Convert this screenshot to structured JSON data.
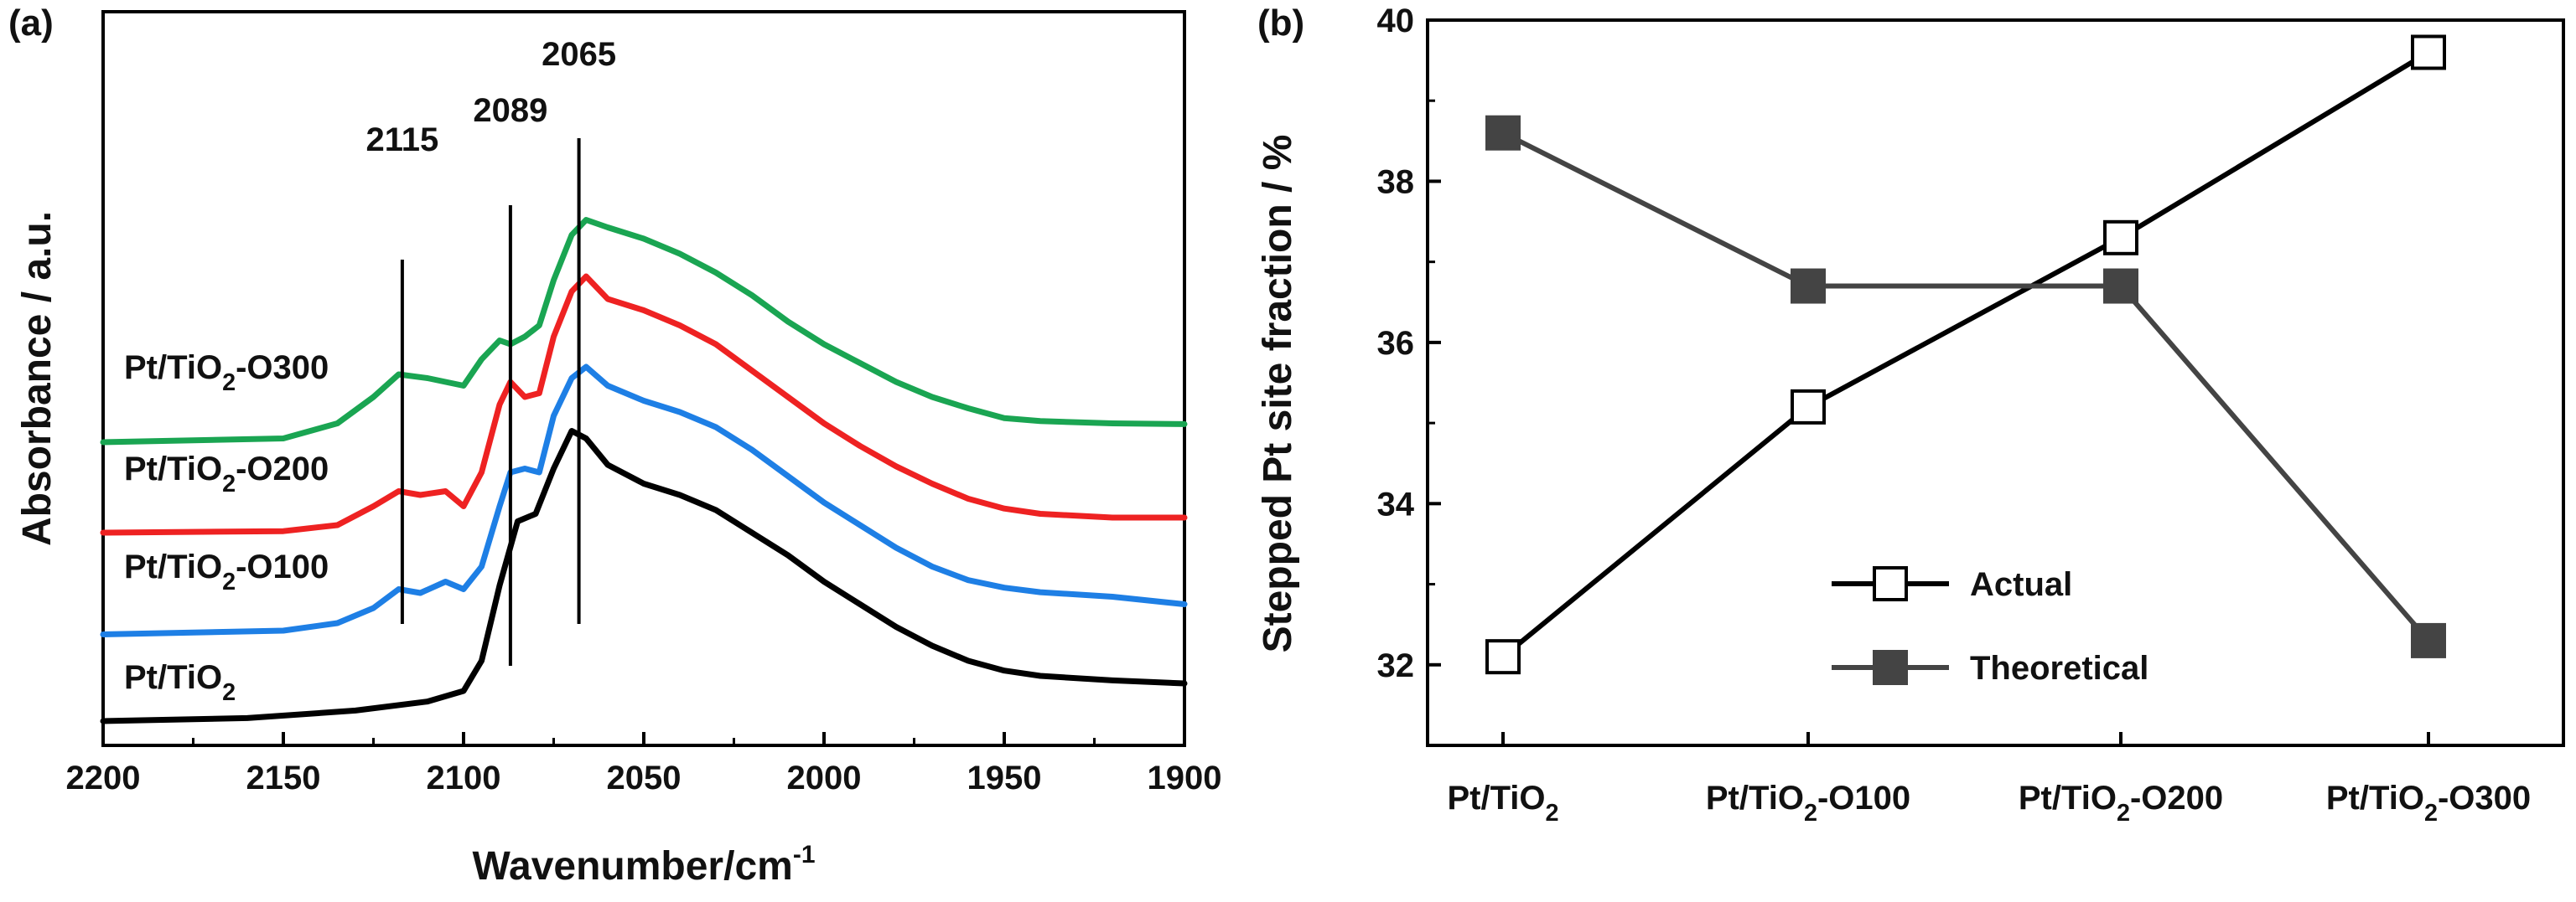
{
  "panel_labels": {
    "a": "(a)",
    "b": "(b)"
  },
  "colors": {
    "axis": "#000000",
    "actual": "#000000",
    "theoretical": "#444444",
    "vline": "#000000"
  },
  "chart_data": [
    {
      "id": "a",
      "type": "line",
      "xlabel_main": "Wavenumber/cm",
      "xlabel_sup": "-1",
      "ylabel": "Absorbance / a.u.",
      "xlim": [
        2200,
        1900
      ],
      "x_ticks": [
        2200,
        2150,
        2100,
        2050,
        2000,
        1950,
        1900
      ],
      "yticks_shown": false,
      "y_range_offset_units": [
        0,
        8.4
      ],
      "peak_lines": [
        {
          "label": "2115",
          "x": 2117
        },
        {
          "label": "2089",
          "x": 2087
        },
        {
          "label": "2065",
          "x": 2068
        }
      ],
      "series": [
        {
          "name": "Pt/TiO2",
          "label_parts": [
            "Pt/TiO",
            "2",
            ""
          ],
          "color": "#000000",
          "offset": 0,
          "points": [
            [
              2200,
              0.1
            ],
            [
              2160,
              0.14
            ],
            [
              2130,
              0.24
            ],
            [
              2110,
              0.36
            ],
            [
              2100,
              0.5
            ],
            [
              2095,
              0.9
            ],
            [
              2090,
              1.9
            ],
            [
              2085,
              2.75
            ],
            [
              2080,
              2.85
            ],
            [
              2075,
              3.45
            ],
            [
              2070,
              3.95
            ],
            [
              2066,
              3.85
            ],
            [
              2060,
              3.5
            ],
            [
              2050,
              3.25
            ],
            [
              2040,
              3.1
            ],
            [
              2030,
              2.9
            ],
            [
              2020,
              2.6
            ],
            [
              2010,
              2.3
            ],
            [
              2000,
              1.95
            ],
            [
              1990,
              1.65
            ],
            [
              1980,
              1.35
            ],
            [
              1970,
              1.1
            ],
            [
              1960,
              0.9
            ],
            [
              1950,
              0.77
            ],
            [
              1940,
              0.7
            ],
            [
              1920,
              0.64
            ],
            [
              1900,
              0.6
            ]
          ]
        },
        {
          "name": "Pt/TiO2-O100",
          "label_parts": [
            "Pt/TiO",
            "2",
            "-O100"
          ],
          "color": "#1e7fe5",
          "offset": 1.25,
          "points": [
            [
              2200,
              0
            ],
            [
              2150,
              0.05
            ],
            [
              2135,
              0.15
            ],
            [
              2125,
              0.35
            ],
            [
              2118,
              0.6
            ],
            [
              2112,
              0.55
            ],
            [
              2105,
              0.7
            ],
            [
              2100,
              0.6
            ],
            [
              2095,
              0.9
            ],
            [
              2090,
              1.7
            ],
            [
              2087,
              2.15
            ],
            [
              2083,
              2.2
            ],
            [
              2079,
              2.15
            ],
            [
              2075,
              2.9
            ],
            [
              2070,
              3.4
            ],
            [
              2066,
              3.55
            ],
            [
              2060,
              3.3
            ],
            [
              2050,
              3.1
            ],
            [
              2040,
              2.95
            ],
            [
              2030,
              2.75
            ],
            [
              2020,
              2.45
            ],
            [
              2010,
              2.1
            ],
            [
              2000,
              1.75
            ],
            [
              1990,
              1.45
            ],
            [
              1980,
              1.15
            ],
            [
              1970,
              0.9
            ],
            [
              1960,
              0.72
            ],
            [
              1950,
              0.62
            ],
            [
              1940,
              0.56
            ],
            [
              1920,
              0.5
            ],
            [
              1900,
              0.4
            ]
          ]
        },
        {
          "name": "Pt/TiO2-O200",
          "label_parts": [
            "Pt/TiO",
            "2",
            "-O200"
          ],
          "color": "#ee2222",
          "offset": 2.6,
          "points": [
            [
              2200,
              0
            ],
            [
              2150,
              0.02
            ],
            [
              2135,
              0.1
            ],
            [
              2125,
              0.35
            ],
            [
              2118,
              0.55
            ],
            [
              2112,
              0.5
            ],
            [
              2105,
              0.55
            ],
            [
              2100,
              0.35
            ],
            [
              2095,
              0.8
            ],
            [
              2090,
              1.7
            ],
            [
              2087,
              2.0
            ],
            [
              2083,
              1.8
            ],
            [
              2079,
              1.85
            ],
            [
              2075,
              2.6
            ],
            [
              2070,
              3.2
            ],
            [
              2066,
              3.4
            ],
            [
              2060,
              3.1
            ],
            [
              2050,
              2.95
            ],
            [
              2040,
              2.75
            ],
            [
              2030,
              2.5
            ],
            [
              2020,
              2.15
            ],
            [
              2010,
              1.8
            ],
            [
              2000,
              1.45
            ],
            [
              1990,
              1.15
            ],
            [
              1980,
              0.88
            ],
            [
              1970,
              0.65
            ],
            [
              1960,
              0.45
            ],
            [
              1950,
              0.32
            ],
            [
              1940,
              0.25
            ],
            [
              1920,
              0.2
            ],
            [
              1900,
              0.2
            ]
          ]
        },
        {
          "name": "Pt/TiO2-O300",
          "label_parts": [
            "Pt/TiO",
            "2",
            "-O300"
          ],
          "color": "#1aa552",
          "offset": 3.8,
          "points": [
            [
              2200,
              0
            ],
            [
              2150,
              0.05
            ],
            [
              2135,
              0.25
            ],
            [
              2125,
              0.6
            ],
            [
              2118,
              0.9
            ],
            [
              2110,
              0.85
            ],
            [
              2100,
              0.75
            ],
            [
              2095,
              1.1
            ],
            [
              2090,
              1.35
            ],
            [
              2087,
              1.3
            ],
            [
              2083,
              1.4
            ],
            [
              2079,
              1.55
            ],
            [
              2075,
              2.15
            ],
            [
              2070,
              2.75
            ],
            [
              2066,
              2.95
            ],
            [
              2060,
              2.85
            ],
            [
              2050,
              2.7
            ],
            [
              2040,
              2.5
            ],
            [
              2030,
              2.25
            ],
            [
              2020,
              1.95
            ],
            [
              2010,
              1.6
            ],
            [
              2000,
              1.3
            ],
            [
              1990,
              1.05
            ],
            [
              1980,
              0.8
            ],
            [
              1970,
              0.6
            ],
            [
              1960,
              0.45
            ],
            [
              1950,
              0.32
            ],
            [
              1940,
              0.28
            ],
            [
              1920,
              0.25
            ],
            [
              1900,
              0.24
            ]
          ]
        }
      ]
    },
    {
      "id": "b",
      "type": "line",
      "ylabel": "Stepped Pt site fraction / %",
      "ylim": [
        31,
        40
      ],
      "y_ticks": [
        32,
        34,
        36,
        38,
        40
      ],
      "categories": [
        {
          "name": "Pt/TiO2",
          "parts": [
            "Pt/TiO",
            "2",
            ""
          ]
        },
        {
          "name": "Pt/TiO2-O100",
          "parts": [
            "Pt/TiO",
            "2",
            "-O100"
          ]
        },
        {
          "name": "Pt/TiO2-O200",
          "parts": [
            "Pt/TiO",
            "2",
            "-O200"
          ]
        },
        {
          "name": "Pt/TiO2-O300",
          "parts": [
            "Pt/TiO",
            "2",
            "-O300"
          ]
        }
      ],
      "series": [
        {
          "name": "Actual",
          "marker": "open-square",
          "color": "#000000",
          "values": [
            32.1,
            35.2,
            37.3,
            39.6
          ]
        },
        {
          "name": "Theoretical",
          "marker": "filled-square",
          "color": "#444444",
          "values": [
            38.6,
            36.7,
            36.7,
            32.3
          ]
        }
      ],
      "legend_position": "lower-center"
    }
  ]
}
